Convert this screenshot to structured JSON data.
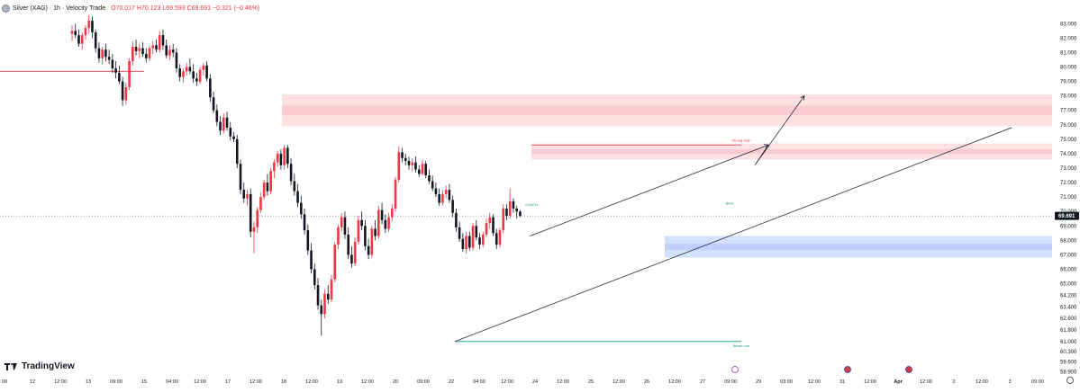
{
  "header": {
    "symbol_title": "Silver (XAG) · 1h · Velocity Trade",
    "open": "O70.017",
    "high": "H70.123",
    "low": "L69.593",
    "close": "C69.691",
    "change": "−0.321 (−0.46%)"
  },
  "branding": {
    "logo_text": "TradingView",
    "logo_icon": "tradingview-logo-icon"
  },
  "colors": {
    "up": "#f23645",
    "down": "#131722",
    "supply": "#f23645",
    "demand": "#2962ff",
    "trendline": "#131722",
    "weak_low": "#089981"
  },
  "chart_data": {
    "type": "candlestick",
    "y_axis": {
      "range": [
        58.5,
        84.2
      ],
      "ticks": [
        83.0,
        82.0,
        81.0,
        80.0,
        79.0,
        78.0,
        77.0,
        76.0,
        75.0,
        74.0,
        73.0,
        72.0,
        71.0,
        70.0,
        69.0,
        68.0,
        67.0,
        66.0,
        65.0,
        64.2,
        63.4,
        62.6,
        61.8,
        61.0,
        60.3,
        59.6,
        58.9
      ],
      "tick_labels": [
        "83.000",
        "82.000",
        "81.000",
        "80.000",
        "79.000",
        "78.000",
        "77.000",
        "76.000",
        "75.000",
        "74.000",
        "73.000",
        "72.000",
        "71.000",
        "70.000",
        "69.000",
        "68.000",
        "67.000",
        "66.000",
        "65.000",
        "64.200",
        "63.400",
        "62.600",
        "61.800",
        "61.000",
        "60.300",
        "59.600",
        "58.900"
      ],
      "current_price": 69.691,
      "current_price_label": "69.691"
    },
    "x_axis": {
      "tick_labels": [
        "00",
        "12",
        "12:00",
        "13",
        "09:00",
        "15",
        "04:00",
        "12:00",
        "17",
        "12:00",
        "18",
        "12:00",
        "19",
        "12:00",
        "20",
        "09:00",
        "22",
        "04:00",
        "12:00",
        "24",
        "12:00",
        "25",
        "12:00",
        "26",
        "12:00",
        "27",
        "09:00",
        "29",
        "03:00",
        "12:00",
        "31",
        "12:00",
        "Apr",
        "12:00",
        "2",
        "12:00",
        "3",
        "09:00"
      ],
      "session_markers": [
        "brand-circle-icon",
        "us-flag-icon",
        "us-flag-icon"
      ]
    },
    "grid": false,
    "ohlc": [
      [
        82.3,
        82.9,
        81.8,
        82.5
      ],
      [
        82.5,
        83.0,
        82.0,
        82.2
      ],
      [
        82.2,
        82.6,
        81.4,
        81.6
      ],
      [
        81.6,
        82.4,
        81.2,
        82.2
      ],
      [
        82.2,
        82.9,
        81.9,
        82.7
      ],
      [
        82.7,
        83.6,
        82.3,
        83.2
      ],
      [
        83.2,
        83.5,
        82.0,
        82.4
      ],
      [
        82.4,
        82.6,
        81.0,
        81.3
      ],
      [
        81.3,
        81.7,
        80.3,
        80.6
      ],
      [
        80.6,
        81.4,
        80.2,
        81.2
      ],
      [
        81.2,
        81.6,
        80.4,
        80.7
      ],
      [
        80.7,
        81.2,
        80.2,
        80.5
      ],
      [
        80.5,
        80.9,
        79.6,
        79.9
      ],
      [
        79.9,
        80.4,
        79.2,
        79.6
      ],
      [
        79.6,
        80.1,
        78.8,
        79.0
      ],
      [
        79.0,
        79.3,
        77.3,
        77.7
      ],
      [
        77.7,
        78.9,
        77.4,
        78.6
      ],
      [
        78.6,
        80.6,
        78.4,
        80.4
      ],
      [
        80.4,
        81.8,
        80.1,
        81.4
      ],
      [
        81.4,
        81.9,
        80.8,
        81.1
      ],
      [
        81.1,
        81.6,
        80.6,
        81.3
      ],
      [
        81.3,
        81.7,
        80.7,
        80.9
      ],
      [
        80.9,
        81.3,
        80.3,
        80.6
      ],
      [
        80.6,
        81.5,
        80.4,
        81.3
      ],
      [
        81.3,
        81.8,
        80.9,
        81.5
      ],
      [
        81.5,
        81.9,
        81.0,
        81.2
      ],
      [
        81.2,
        82.5,
        81.0,
        82.2
      ],
      [
        82.2,
        82.6,
        81.2,
        81.5
      ],
      [
        81.5,
        81.9,
        80.6,
        80.8
      ],
      [
        80.8,
        81.5,
        80.5,
        81.2
      ],
      [
        81.2,
        81.6,
        80.7,
        81.0
      ],
      [
        81.0,
        81.3,
        79.6,
        79.9
      ],
      [
        79.9,
        80.2,
        79.0,
        79.3
      ],
      [
        79.3,
        79.9,
        78.9,
        79.7
      ],
      [
        79.7,
        80.3,
        79.4,
        80.0
      ],
      [
        80.0,
        80.6,
        79.5,
        79.7
      ],
      [
        79.7,
        80.2,
        78.9,
        79.2
      ],
      [
        79.2,
        79.6,
        78.7,
        79.0
      ],
      [
        79.0,
        80.0,
        78.8,
        79.8
      ],
      [
        79.8,
        80.3,
        79.4,
        80.1
      ],
      [
        80.1,
        80.4,
        79.0,
        79.2
      ],
      [
        79.2,
        79.5,
        77.6,
        77.9
      ],
      [
        77.9,
        78.3,
        76.8,
        77.0
      ],
      [
        77.0,
        77.4,
        75.9,
        76.2
      ],
      [
        76.2,
        76.6,
        75.3,
        75.6
      ],
      [
        75.6,
        76.8,
        75.4,
        76.5
      ],
      [
        76.5,
        76.9,
        75.6,
        75.8
      ],
      [
        75.8,
        76.2,
        74.9,
        75.2
      ],
      [
        75.2,
        75.5,
        74.8,
        75.0
      ],
      [
        75.0,
        75.3,
        73.0,
        73.3
      ],
      [
        73.3,
        73.6,
        71.2,
        71.5
      ],
      [
        71.5,
        72.0,
        70.6,
        70.9
      ],
      [
        70.9,
        71.5,
        70.4,
        71.2
      ],
      [
        71.2,
        71.6,
        68.2,
        68.6
      ],
      [
        68.6,
        69.3,
        67.1,
        68.9
      ],
      [
        68.9,
        70.3,
        68.5,
        70.1
      ],
      [
        70.1,
        71.3,
        69.9,
        71.0
      ],
      [
        71.0,
        72.2,
        70.8,
        72.0
      ],
      [
        72.0,
        72.6,
        71.1,
        71.4
      ],
      [
        71.4,
        73.0,
        71.2,
        72.8
      ],
      [
        72.8,
        73.6,
        72.3,
        73.4
      ],
      [
        73.4,
        74.2,
        73.1,
        74.0
      ],
      [
        74.0,
        74.3,
        72.9,
        73.2
      ],
      [
        73.2,
        74.6,
        72.9,
        74.4
      ],
      [
        74.4,
        74.6,
        73.0,
        73.3
      ],
      [
        73.3,
        73.7,
        71.8,
        72.1
      ],
      [
        72.1,
        72.6,
        71.1,
        71.4
      ],
      [
        71.4,
        71.9,
        70.3,
        70.6
      ],
      [
        70.6,
        71.1,
        69.5,
        69.8
      ],
      [
        69.8,
        70.2,
        68.4,
        68.7
      ],
      [
        68.7,
        69.1,
        67.0,
        67.3
      ],
      [
        67.3,
        67.8,
        65.7,
        66.0
      ],
      [
        66.0,
        66.4,
        64.6,
        64.9
      ],
      [
        64.9,
        65.4,
        63.2,
        63.5
      ],
      [
        63.5,
        63.9,
        61.4,
        62.9
      ],
      [
        62.9,
        64.6,
        62.6,
        64.3
      ],
      [
        64.3,
        64.9,
        63.6,
        63.9
      ],
      [
        63.9,
        65.6,
        63.7,
        65.3
      ],
      [
        65.3,
        67.9,
        65.1,
        67.7
      ],
      [
        67.7,
        69.1,
        67.4,
        68.9
      ],
      [
        68.9,
        69.9,
        68.6,
        69.6
      ],
      [
        69.6,
        70.0,
        68.1,
        68.4
      ],
      [
        68.4,
        68.9,
        66.7,
        67.0
      ],
      [
        67.0,
        67.6,
        66.1,
        66.4
      ],
      [
        66.4,
        68.2,
        66.2,
        67.9
      ],
      [
        67.9,
        69.7,
        67.7,
        69.4
      ],
      [
        69.4,
        70.0,
        68.7,
        69.0
      ],
      [
        69.0,
        69.4,
        67.3,
        67.6
      ],
      [
        67.6,
        68.1,
        66.7,
        67.0
      ],
      [
        67.0,
        69.0,
        66.8,
        68.8
      ],
      [
        68.8,
        69.4,
        68.0,
        68.3
      ],
      [
        68.3,
        70.4,
        68.1,
        70.1
      ],
      [
        70.1,
        70.6,
        69.1,
        69.4
      ],
      [
        69.4,
        69.8,
        68.5,
        68.8
      ],
      [
        68.8,
        69.9,
        68.6,
        69.6
      ],
      [
        69.6,
        70.5,
        69.3,
        70.2
      ],
      [
        70.2,
        72.4,
        70.0,
        72.2
      ],
      [
        72.2,
        74.5,
        72.0,
        74.1
      ],
      [
        74.1,
        74.4,
        73.4,
        73.7
      ],
      [
        73.7,
        74.0,
        73.2,
        73.5
      ],
      [
        73.5,
        73.8,
        72.9,
        73.2
      ],
      [
        73.2,
        73.7,
        72.8,
        73.4
      ],
      [
        73.4,
        73.8,
        72.7,
        72.9
      ],
      [
        72.9,
        73.2,
        72.4,
        72.6
      ],
      [
        72.6,
        73.6,
        72.5,
        73.3
      ],
      [
        73.3,
        73.5,
        72.3,
        72.5
      ],
      [
        72.5,
        72.9,
        71.9,
        72.1
      ],
      [
        72.1,
        72.5,
        71.4,
        71.6
      ],
      [
        71.6,
        72.0,
        71.0,
        71.2
      ],
      [
        71.2,
        71.6,
        70.4,
        70.6
      ],
      [
        70.6,
        71.5,
        70.4,
        71.2
      ],
      [
        71.2,
        71.8,
        70.9,
        71.5
      ],
      [
        71.5,
        71.9,
        70.6,
        70.8
      ],
      [
        70.8,
        71.1,
        69.6,
        69.9
      ],
      [
        69.9,
        70.2,
        68.6,
        68.9
      ],
      [
        68.9,
        69.3,
        67.9,
        68.1
      ],
      [
        68.1,
        68.5,
        67.2,
        67.4
      ],
      [
        67.4,
        68.6,
        67.1,
        68.3
      ],
      [
        68.3,
        68.6,
        67.3,
        67.5
      ],
      [
        67.5,
        69.2,
        67.3,
        69.0
      ],
      [
        69.0,
        69.4,
        68.0,
        68.2
      ],
      [
        68.2,
        68.5,
        67.4,
        67.7
      ],
      [
        67.7,
        68.6,
        67.5,
        68.4
      ],
      [
        68.4,
        69.5,
        68.2,
        69.2
      ],
      [
        69.2,
        69.9,
        68.8,
        69.6
      ],
      [
        69.6,
        69.8,
        68.3,
        68.5
      ],
      [
        68.5,
        68.8,
        67.4,
        67.7
      ],
      [
        67.7,
        68.9,
        67.5,
        68.7
      ],
      [
        68.7,
        70.5,
        68.5,
        70.2
      ],
      [
        70.2,
        70.5,
        69.4,
        69.7
      ],
      [
        69.7,
        71.6,
        69.5,
        70.7
      ],
      [
        70.7,
        70.9,
        69.9,
        70.2
      ],
      [
        70.2,
        70.4,
        69.5,
        70.0
      ],
      [
        70.0,
        70.1,
        69.6,
        69.7
      ]
    ],
    "zones": [
      {
        "type": "supply",
        "from": 75.9,
        "to": 78.1
      },
      {
        "type": "supply",
        "from": 73.6,
        "to": 74.7
      },
      {
        "type": "demand",
        "from": 66.8,
        "to": 68.3
      }
    ],
    "annotations": [
      {
        "text": "Strong High",
        "kind": "label"
      },
      {
        "text": "Weak Low",
        "kind": "label"
      },
      {
        "text": "CHoCH",
        "kind": "label"
      },
      {
        "text": "BOS",
        "kind": "label"
      }
    ],
    "price_levels": [
      {
        "name": "strong-high-level",
        "value": 74.6
      },
      {
        "name": "weak-low-level",
        "value": 61.0
      },
      {
        "name": "left-resistance-level",
        "value": 79.7
      }
    ],
    "trendline": {
      "from_price": 61.0,
      "to_price": 75.8
    },
    "projection_path": [
      68.3,
      74.6,
      73.2,
      78.0
    ]
  }
}
